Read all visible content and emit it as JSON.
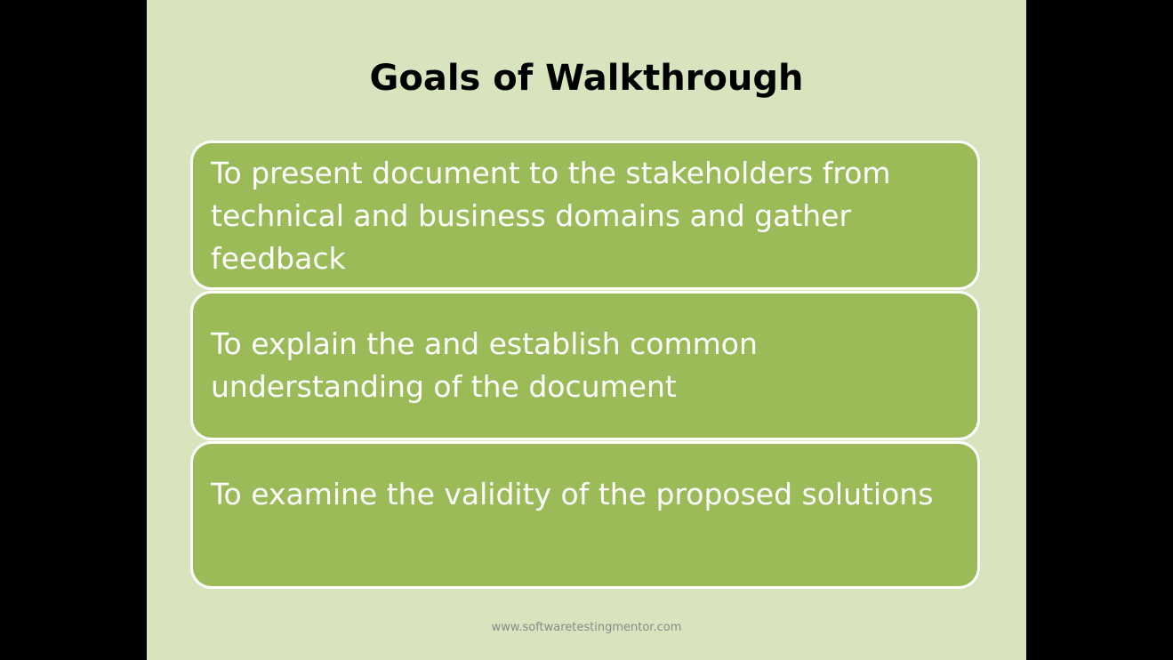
{
  "slide": {
    "title": "Goals of Walkthrough",
    "goals": [
      "To present document to the stakeholders from technical and business domains and gather feedback",
      "To explain the and establish common understanding of the document",
      "To examine the validity of the proposed solutions"
    ],
    "footer": "www.softwaretestingmentor.com"
  },
  "colors": {
    "slide_background": "#d7e4bd",
    "box_fill": "#9bbb59",
    "box_border": "#ffffff",
    "letterbox": "#000000"
  }
}
